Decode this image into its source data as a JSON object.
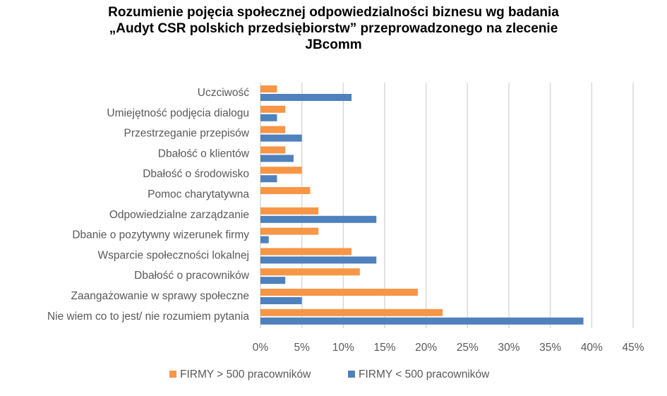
{
  "chart_data": {
    "type": "bar",
    "orientation": "horizontal",
    "title_lines": [
      "Rozumienie pojęcia społecznej odpowiedzialności biznesu wg badania",
      "„Audyt CSR polskich przedsiębiorstw” przeprowadzonego na zlecenie",
      "JBcomm"
    ],
    "categories": [
      "Uczciwość",
      "Umiejętność podjęcia dialogu",
      "Przestrzeganie przepisów",
      "Dbałość o klientów",
      "Dbałość o środowisko",
      "Pomoc charytatywna",
      "Odpowiedzialne zarządzanie",
      "Dbanie o pozytywny wizerunek firmy",
      "Wsparcie społeczności lokalnej",
      "Dbałość o pracowników",
      "Zaangażowanie w sprawy społeczne",
      "Nie wiem co to jest/ nie rozumiem pytania"
    ],
    "series": [
      {
        "name": "FIRMY  > 500 pracowników",
        "color": "#F79646",
        "values": [
          2,
          3,
          3,
          3,
          5,
          6,
          7,
          7,
          11,
          12,
          19,
          22
        ]
      },
      {
        "name": "FIRMY  < 500 pracowników",
        "color": "#4F81BD",
        "values": [
          11,
          2,
          5,
          4,
          2,
          0,
          14,
          1,
          14,
          3,
          5,
          39
        ]
      }
    ],
    "xlim": [
      0,
      45
    ],
    "xticks": [
      0,
      5,
      10,
      15,
      20,
      25,
      30,
      35,
      40,
      45
    ],
    "xtick_labels": [
      "0%",
      "5%",
      "10%",
      "15%",
      "20%",
      "25%",
      "30%",
      "35%",
      "40%",
      "45%"
    ],
    "grid": true,
    "legend_position": "bottom"
  }
}
